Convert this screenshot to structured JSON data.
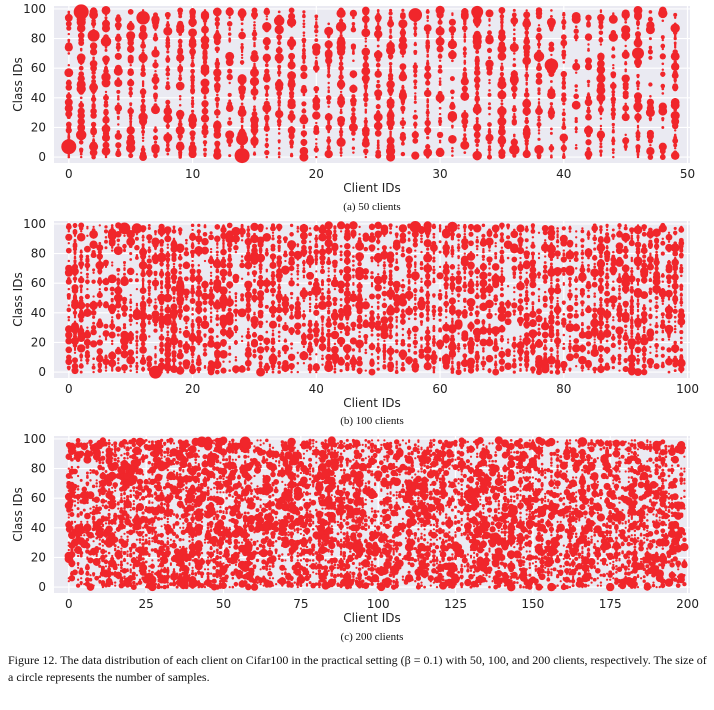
{
  "caption": "Figure 12. The data distribution of each client on Cifar100 in the practical setting (β = 0.1) with 50, 100, and 200 clients, respectively. The size of a circle represents the number of samples.",
  "colors": {
    "marker": "#f0262b",
    "plot_background": "#eaeaf2",
    "grid": "#ffffff"
  },
  "chart_data": [
    {
      "type": "scatter",
      "subcaption": "(a) 50 clients",
      "xlabel": "Client IDs",
      "ylabel": "Class IDs",
      "xlim": [
        -1.2,
        50.2
      ],
      "ylim": [
        -4,
        102
      ],
      "xticks": [
        0,
        10,
        20,
        30,
        40,
        50
      ],
      "yticks": [
        0,
        20,
        40,
        60,
        80,
        100
      ],
      "grid": true,
      "num_clients": 50,
      "num_classes": 100,
      "size_encoding": "number of samples",
      "large_points": [
        [
          0,
          7,
          1.0
        ],
        [
          1,
          98,
          1.0
        ],
        [
          1,
          15,
          0.7
        ],
        [
          2,
          82,
          0.8
        ],
        [
          3,
          78,
          0.7
        ],
        [
          4,
          58,
          0.6
        ],
        [
          6,
          94,
          0.9
        ],
        [
          8,
          85,
          0.6
        ],
        [
          11,
          50,
          0.6
        ],
        [
          13,
          68,
          0.6
        ],
        [
          14,
          1,
          1.0
        ],
        [
          14,
          12,
          0.8
        ],
        [
          17,
          92,
          0.7
        ],
        [
          21,
          85,
          0.6
        ],
        [
          22,
          88,
          0.7
        ],
        [
          23,
          20,
          0.6
        ],
        [
          27,
          75,
          0.6
        ],
        [
          28,
          96,
          0.9
        ],
        [
          30,
          40,
          0.6
        ],
        [
          30,
          85,
          0.6
        ],
        [
          33,
          98,
          0.8
        ],
        [
          35,
          73,
          0.6
        ],
        [
          36,
          5,
          0.7
        ],
        [
          38,
          68,
          0.7
        ],
        [
          39,
          62,
          0.9
        ],
        [
          41,
          93,
          0.6
        ],
        [
          43,
          40,
          0.6
        ],
        [
          45,
          82,
          0.6
        ],
        [
          46,
          70,
          0.8
        ],
        [
          47,
          30,
          0.6
        ]
      ]
    },
    {
      "type": "scatter",
      "subcaption": "(b) 100 clients",
      "xlabel": "Client IDs",
      "ylabel": "Class IDs",
      "xlim": [
        -2.4,
        100.4
      ],
      "ylim": [
        -4,
        102
      ],
      "xticks": [
        0,
        20,
        40,
        60,
        80,
        100
      ],
      "yticks": [
        0,
        20,
        40,
        60,
        80,
        100
      ],
      "grid": true,
      "num_clients": 100,
      "num_classes": 100,
      "size_encoding": "number of samples",
      "large_points": [
        [
          9,
          97,
          0.9
        ],
        [
          11,
          97,
          0.8
        ],
        [
          14,
          0,
          1.0
        ],
        [
          21,
          82,
          0.7
        ],
        [
          27,
          95,
          0.7
        ],
        [
          36,
          86,
          0.7
        ],
        [
          40,
          55,
          0.8
        ],
        [
          47,
          68,
          0.7
        ],
        [
          49,
          90,
          0.6
        ],
        [
          56,
          98,
          0.9
        ],
        [
          58,
          77,
          0.7
        ],
        [
          62,
          98,
          0.8
        ],
        [
          69,
          97,
          0.6
        ],
        [
          78,
          83,
          0.7
        ],
        [
          81,
          79,
          0.7
        ],
        [
          84,
          81,
          0.6
        ],
        [
          90,
          64,
          0.6
        ],
        [
          94,
          93,
          0.6
        ]
      ]
    },
    {
      "type": "scatter",
      "subcaption": "(c) 200 clients",
      "xlabel": "Client IDs",
      "ylabel": "Class IDs",
      "xlim": [
        -4.8,
        200.8
      ],
      "ylim": [
        -4,
        102
      ],
      "xticks": [
        0,
        25,
        50,
        75,
        100,
        125,
        150,
        175,
        200
      ],
      "yticks": [
        0,
        20,
        40,
        60,
        80,
        100
      ],
      "grid": true,
      "num_clients": 200,
      "num_classes": 100,
      "size_encoding": "number of samples",
      "large_points": [
        [
          3,
          89,
          0.7
        ],
        [
          13,
          85,
          0.6
        ],
        [
          43,
          98,
          0.9
        ],
        [
          45,
          95,
          0.7
        ],
        [
          57,
          98,
          0.9
        ],
        [
          70,
          94,
          0.6
        ],
        [
          80,
          91,
          0.6
        ],
        [
          120,
          90,
          0.6
        ],
        [
          166,
          98,
          0.8
        ],
        [
          175,
          0,
          0.7
        ],
        [
          198,
          5,
          0.6
        ]
      ]
    }
  ]
}
